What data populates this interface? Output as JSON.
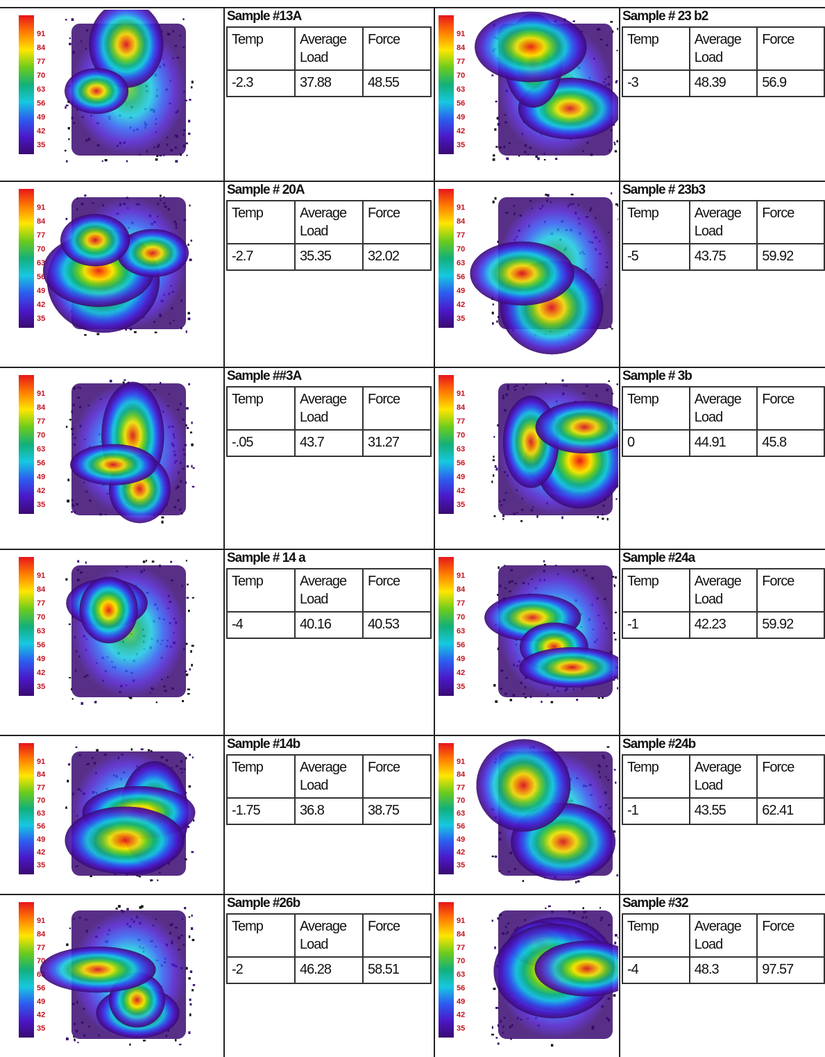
{
  "scale": [
    "91",
    "84",
    "77",
    "70",
    "63",
    "56",
    "49",
    "42",
    "35"
  ],
  "columns": [
    "Temp",
    "Average Load",
    "Force"
  ],
  "samples": [
    {
      "title": "Sample #13A",
      "values": [
        "-2.3",
        "37.88",
        "48.55"
      ]
    },
    {
      "title": "Sample # 23 b2",
      "values": [
        "-3",
        "48.39",
        "56.9"
      ]
    },
    {
      "title": "Sample # 20A",
      "values": [
        "-2.7",
        "35.35",
        "32.02"
      ]
    },
    {
      "title": "Sample # 23b3",
      "values": [
        "-5",
        "43.75",
        "59.92"
      ]
    },
    {
      "title": "Sample ##3A",
      "values": [
        "-.05",
        "43.7",
        "31.27"
      ]
    },
    {
      "title": "Sample # 3b",
      "values": [
        "0",
        "44.91",
        "45.8"
      ]
    },
    {
      "title": "Sample # 14 a",
      "values": [
        "-4",
        "40.16",
        "40.53"
      ]
    },
    {
      "title": "Sample #24a",
      "values": [
        "-1",
        "42.23",
        "59.92"
      ]
    },
    {
      "title": "Sample #14b",
      "values": [
        "-1.75",
        "36.8",
        "38.75"
      ]
    },
    {
      "title": "Sample #24b",
      "values": [
        "-1",
        "43.55",
        "62.41"
      ]
    },
    {
      "title": "Sample #26b",
      "values": [
        "-2",
        "46.28",
        "58.51"
      ]
    },
    {
      "title": "Sample #32",
      "values": [
        "-4",
        "48.3",
        "97.57"
      ]
    }
  ]
}
